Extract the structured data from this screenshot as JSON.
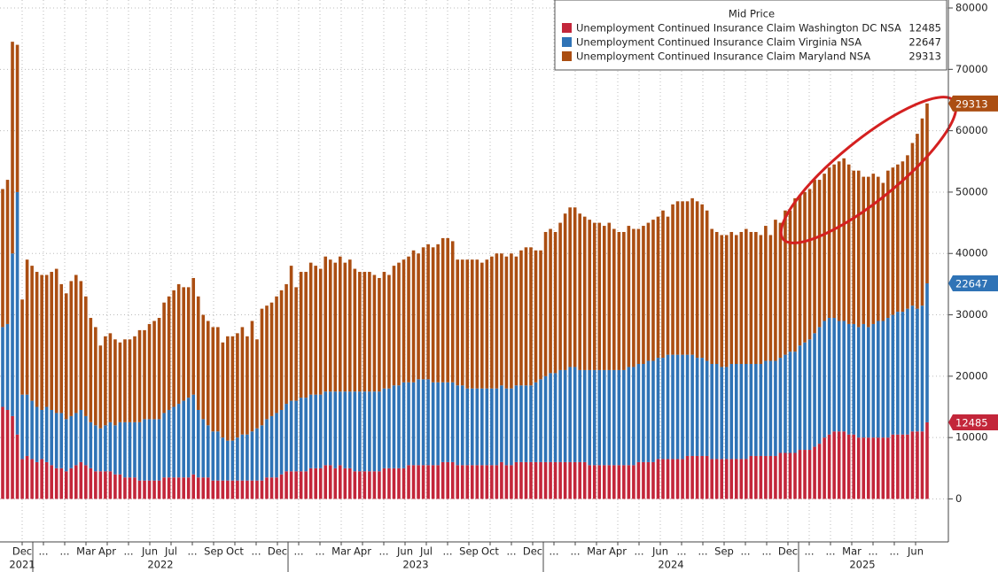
{
  "chart_data": {
    "type": "bar",
    "stacked": true,
    "legend_title": "Mid Price",
    "legend": "top-right",
    "grid": true,
    "y_axis_side": "right",
    "ylim": [
      -7000,
      81300
    ],
    "yticks": [
      0,
      10000,
      20000,
      30000,
      40000,
      50000,
      60000,
      70000,
      80000
    ],
    "months": [
      "Dec",
      "...",
      "...",
      "Mar",
      "Apr",
      "...",
      "Jun",
      "Jul",
      "...",
      "Sep",
      "Oct",
      "...",
      "Dec",
      "...",
      "...",
      "Mar",
      "Apr",
      "...",
      "Jun",
      "Jul",
      "...",
      "Sep",
      "Oct",
      "...",
      "Dec",
      "...",
      "...",
      "Mar",
      "Apr",
      "...",
      "Jun",
      "...",
      "...",
      "Sep",
      "...",
      "...",
      "Dec",
      "...",
      "...",
      "Mar",
      "...",
      "...",
      "Jun"
    ],
    "years": [
      "2021",
      "2022",
      "2023",
      "2024",
      "2025"
    ],
    "series": [
      {
        "name": "Unemployment Continued Insurance Claim Washington DC NSA",
        "color": "#c3263a",
        "values": [
          15000,
          14500,
          13500,
          10500,
          6500,
          7000,
          6500,
          6000,
          6500,
          6000,
          5500,
          5000,
          5000,
          4500,
          5000,
          5500,
          6000,
          5500,
          5000,
          4500,
          4500,
          4500,
          4500,
          4000,
          4000,
          3500,
          3500,
          3500,
          3000,
          3000,
          3000,
          3000,
          3000,
          3500,
          3500,
          3500,
          3500,
          3500,
          3500,
          4000,
          3500,
          3500,
          3500,
          3000,
          3000,
          3000,
          3000,
          3000,
          3000,
          3000,
          3000,
          3000,
          3000,
          3000,
          3500,
          3500,
          3500,
          4000,
          4500,
          4500,
          4500,
          4500,
          4500,
          5000,
          5000,
          5000,
          5500,
          5500,
          5000,
          5500,
          5000,
          5000,
          4500,
          4500,
          4500,
          4500,
          4500,
          4500,
          5000,
          5000,
          5000,
          5000,
          5000,
          5500,
          5500,
          5500,
          5500,
          5500,
          5500,
          5500,
          6000,
          6000,
          6000,
          5500,
          5500,
          5500,
          5500,
          5500,
          5500,
          5500,
          5500,
          5500,
          6000,
          5500,
          5500,
          6000,
          6000,
          6000,
          6000,
          6000,
          6000,
          6000,
          6000,
          6000,
          6000,
          6000,
          6000,
          6000,
          6000,
          6000,
          5500,
          5500,
          5500,
          5500,
          5500,
          5500,
          5500,
          5500,
          5500,
          5500,
          6000,
          6000,
          6000,
          6000,
          6500,
          6500,
          6500,
          6500,
          6500,
          6500,
          7000,
          7000,
          7000,
          7000,
          7000,
          6500,
          6500,
          6500,
          6500,
          6500,
          6500,
          6500,
          6500,
          7000,
          7000,
          7000,
          7000,
          7000,
          7000,
          7500,
          7500,
          7500,
          7500,
          8000,
          8000,
          8000,
          8500,
          9000,
          10000,
          10500,
          11000,
          11000,
          11000,
          10500,
          10500,
          10000,
          10000,
          10000,
          10000,
          10000,
          10000,
          10000,
          10500,
          10500,
          10500,
          10500,
          11000,
          11000,
          11000,
          12485
        ]
      },
      {
        "name": "Unemployment Continued Insurance Claim Virginia NSA",
        "color": "#2f73b6",
        "values": [
          13000,
          14000,
          26500,
          39500,
          10500,
          10000,
          9500,
          9000,
          8000,
          9000,
          9000,
          9000,
          9000,
          8500,
          8500,
          8500,
          8500,
          8000,
          7500,
          7500,
          7000,
          7500,
          8000,
          8000,
          8500,
          9000,
          9000,
          9000,
          9500,
          10000,
          10000,
          10000,
          10000,
          10500,
          11000,
          11500,
          12000,
          12500,
          13000,
          13000,
          11000,
          9500,
          8500,
          8000,
          8000,
          7000,
          6500,
          6500,
          7000,
          7500,
          7500,
          8000,
          8500,
          9000,
          9500,
          10000,
          10500,
          10500,
          11000,
          11500,
          11500,
          12000,
          12000,
          12000,
          12000,
          12000,
          12000,
          12000,
          12500,
          12000,
          12500,
          12500,
          13000,
          13000,
          13000,
          13000,
          13000,
          13000,
          13000,
          13000,
          13500,
          13500,
          14000,
          13500,
          13500,
          14000,
          14000,
          14000,
          13500,
          13500,
          13000,
          13000,
          13000,
          13000,
          13000,
          12500,
          12500,
          12500,
          12500,
          12500,
          12500,
          12500,
          12500,
          12500,
          12500,
          12500,
          12500,
          12500,
          12500,
          13000,
          13500,
          14000,
          14500,
          14500,
          15000,
          15000,
          15500,
          15500,
          15000,
          15000,
          15500,
          15500,
          15500,
          15500,
          15500,
          15500,
          15500,
          15500,
          16000,
          16000,
          16000,
          16000,
          16500,
          16500,
          16500,
          16500,
          17000,
          17000,
          17000,
          17000,
          16500,
          16500,
          16000,
          16000,
          15500,
          15500,
          15500,
          15000,
          15000,
          15500,
          15500,
          15500,
          15500,
          15000,
          15000,
          15000,
          15500,
          15500,
          15500,
          15500,
          16000,
          16500,
          16500,
          17000,
          17500,
          18000,
          18500,
          19000,
          19000,
          19000,
          18500,
          18000,
          18000,
          18000,
          18000,
          18000,
          18500,
          18000,
          18500,
          19000,
          19000,
          19500,
          19500,
          20000,
          20000,
          20500,
          20500,
          20000,
          20500,
          22647
        ]
      },
      {
        "name": "Unemployment Continued Insurance Claim Maryland NSA",
        "color": "#ab4e12",
        "values": [
          22500,
          23500,
          34500,
          24000,
          15500,
          22000,
          22000,
          22000,
          22000,
          21500,
          22500,
          23500,
          21000,
          20500,
          22000,
          22500,
          21000,
          19500,
          17000,
          16000,
          13500,
          14500,
          14500,
          14000,
          13000,
          13500,
          13500,
          14000,
          15000,
          14500,
          15500,
          16000,
          16500,
          18000,
          18500,
          19000,
          19500,
          18500,
          18000,
          19000,
          18500,
          17000,
          17000,
          17000,
          17000,
          15500,
          17000,
          17000,
          17000,
          17500,
          16000,
          18000,
          14500,
          19000,
          18500,
          18500,
          19000,
          19500,
          19500,
          22000,
          18500,
          20500,
          20500,
          21500,
          21000,
          20500,
          22000,
          21500,
          21000,
          22000,
          21000,
          21500,
          20000,
          19500,
          19500,
          19500,
          19000,
          18500,
          19000,
          18500,
          19500,
          20000,
          20000,
          20500,
          21500,
          20500,
          21500,
          22000,
          22000,
          22500,
          23500,
          23500,
          23000,
          20500,
          20500,
          21000,
          21000,
          21000,
          20500,
          21000,
          21500,
          22000,
          21500,
          21500,
          22000,
          21000,
          22000,
          22500,
          22500,
          21500,
          21000,
          23500,
          23500,
          23000,
          24000,
          25500,
          26000,
          26000,
          25500,
          25000,
          24500,
          24000,
          24000,
          23500,
          24000,
          23000,
          22500,
          22500,
          23000,
          22500,
          22000,
          22500,
          22500,
          23000,
          23000,
          24000,
          22500,
          24500,
          25000,
          25000,
          25000,
          25500,
          25500,
          25000,
          24500,
          22000,
          21500,
          21500,
          21500,
          21500,
          21000,
          21500,
          22000,
          21500,
          21500,
          21000,
          22000,
          20500,
          23000,
          22000,
          23500,
          23000,
          25000,
          24500,
          24500,
          24500,
          25000,
          24000,
          24000,
          24500,
          25000,
          26000,
          26500,
          26000,
          25000,
          25500,
          24000,
          24500,
          24500,
          23500,
          22500,
          24000,
          24000,
          24000,
          24500,
          25000,
          26500,
          28500,
          30500,
          29313
        ]
      }
    ]
  }
}
